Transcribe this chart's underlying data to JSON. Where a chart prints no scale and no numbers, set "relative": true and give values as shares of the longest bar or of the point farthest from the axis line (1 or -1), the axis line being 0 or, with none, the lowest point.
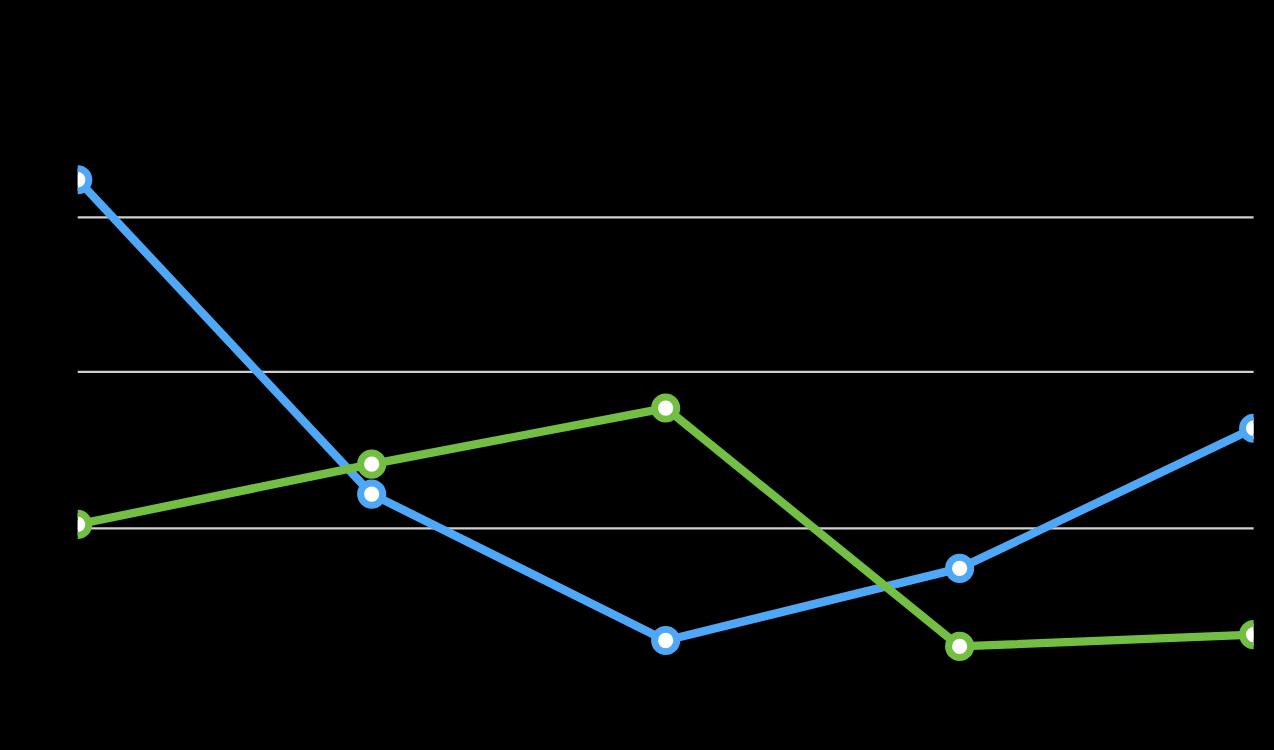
{
  "chart_data": {
    "type": "line",
    "relative": true,
    "categories": [
      null,
      null,
      null,
      null,
      null
    ],
    "series": [
      {
        "color": "#4ea8f7",
        "values": [
          1,
          0.098,
          -0.322,
          -0.115,
          0.287
        ]
      },
      {
        "color": "#72bf44",
        "values": [
          0.011,
          0.184,
          0.345,
          -0.339,
          -0.305
        ]
      }
    ],
    "marker": "circle",
    "line_style": "solid",
    "legend": false
  }
}
